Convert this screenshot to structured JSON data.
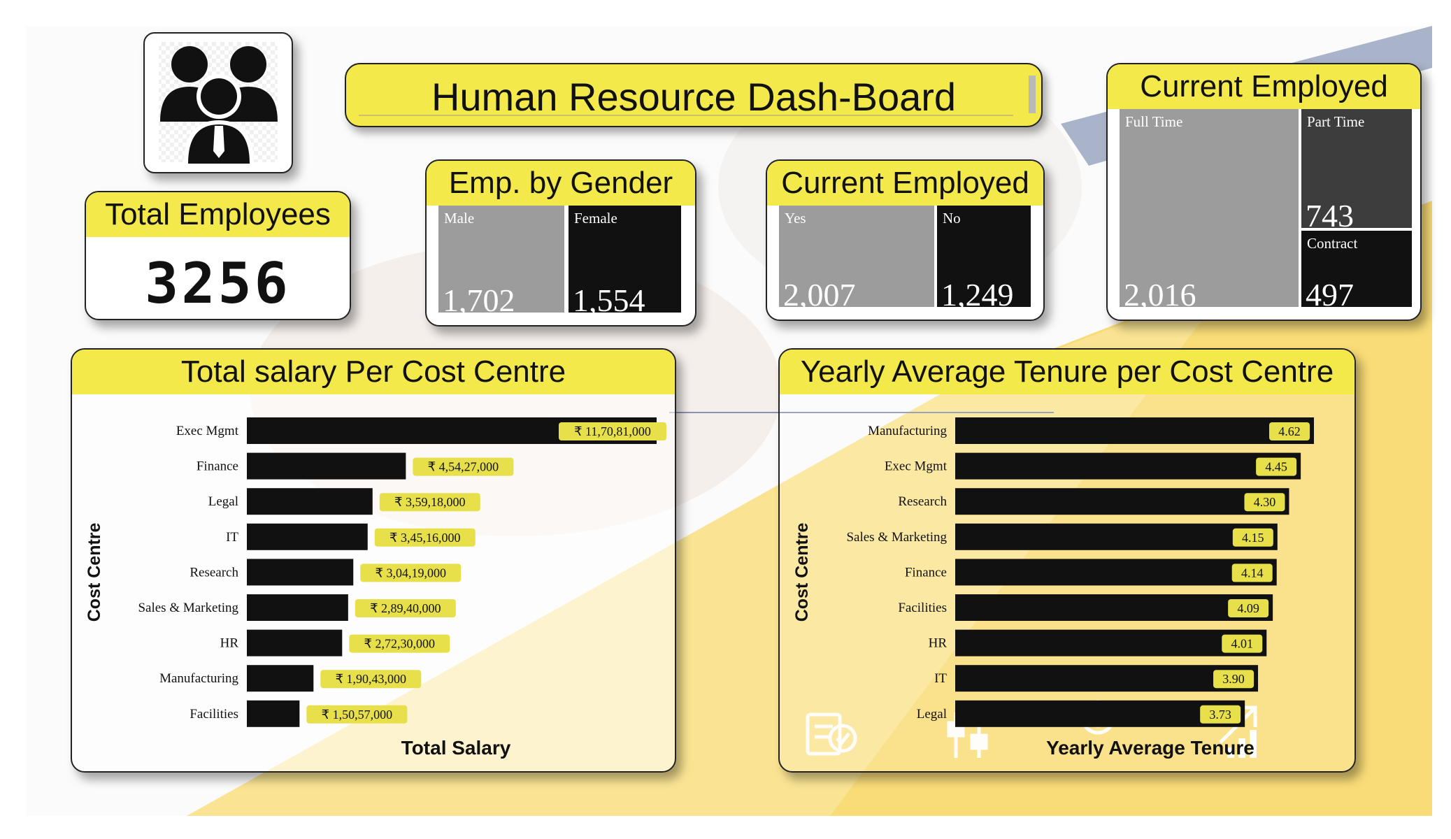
{
  "title": "Human Resource Dash-Board",
  "total_employees": {
    "title": "Total Employees",
    "value": "3256"
  },
  "gender": {
    "title": "Emp. by Gender",
    "tiles": [
      {
        "label": "Male",
        "value": "1,702"
      },
      {
        "label": "Female",
        "value": "1,554"
      }
    ]
  },
  "current": {
    "title": "Current Employed",
    "tiles": [
      {
        "label": "Yes",
        "value": "2,007"
      },
      {
        "label": "No",
        "value": "1,249"
      }
    ]
  },
  "employment_type": {
    "title": "Current Employed",
    "tiles": [
      {
        "label": "Full Time",
        "value": "2,016"
      },
      {
        "label": "Part Time",
        "value": "743"
      },
      {
        "label": "Contract",
        "value": "497"
      }
    ]
  },
  "colors": {
    "accent": "#f3e94a",
    "bar": "#111111",
    "label_bg": "#e8e04a",
    "tile_gray": "#9c9c9c"
  },
  "chart_data": [
    {
      "type": "bar",
      "orientation": "horizontal",
      "title": "Total salary Per Cost Centre",
      "xlabel": "Total Salary",
      "ylabel": "Cost Centre",
      "categories": [
        "Exec Mgmt",
        "Finance",
        "Legal",
        "IT",
        "Research",
        "Sales & Marketing",
        "HR",
        "Manufacturing",
        "Facilities"
      ],
      "values": [
        117081000,
        45427000,
        35918000,
        34516000,
        30419000,
        28940000,
        27230000,
        19043000,
        15057000
      ],
      "data_labels": [
        "₹ 11,70,81,000",
        "₹ 4,54,27,000",
        "₹ 3,59,18,000",
        "₹ 3,45,16,000",
        "₹ 3,04,19,000",
        "₹ 2,89,40,000",
        "₹ 2,72,30,000",
        "₹ 1,90,43,000",
        "₹ 1,50,57,000"
      ],
      "xlim": [
        0,
        117081000
      ]
    },
    {
      "type": "bar",
      "orientation": "horizontal",
      "title": "Yearly Average Tenure per Cost Centre",
      "xlabel": "Yearly Average Tenure",
      "ylabel": "Cost Centre",
      "categories": [
        "Manufacturing",
        "Exec Mgmt",
        "Research",
        "Sales & Marketing",
        "Finance",
        "Facilities",
        "HR",
        "IT",
        "Legal"
      ],
      "values": [
        4.62,
        4.45,
        4.3,
        4.15,
        4.14,
        4.09,
        4.01,
        3.9,
        3.73
      ],
      "data_labels": [
        "4.62",
        "4.45",
        "4.30",
        "4.15",
        "4.14",
        "4.09",
        "4.01",
        "3.90",
        "3.73"
      ],
      "xlim": [
        0,
        4.62
      ]
    }
  ]
}
